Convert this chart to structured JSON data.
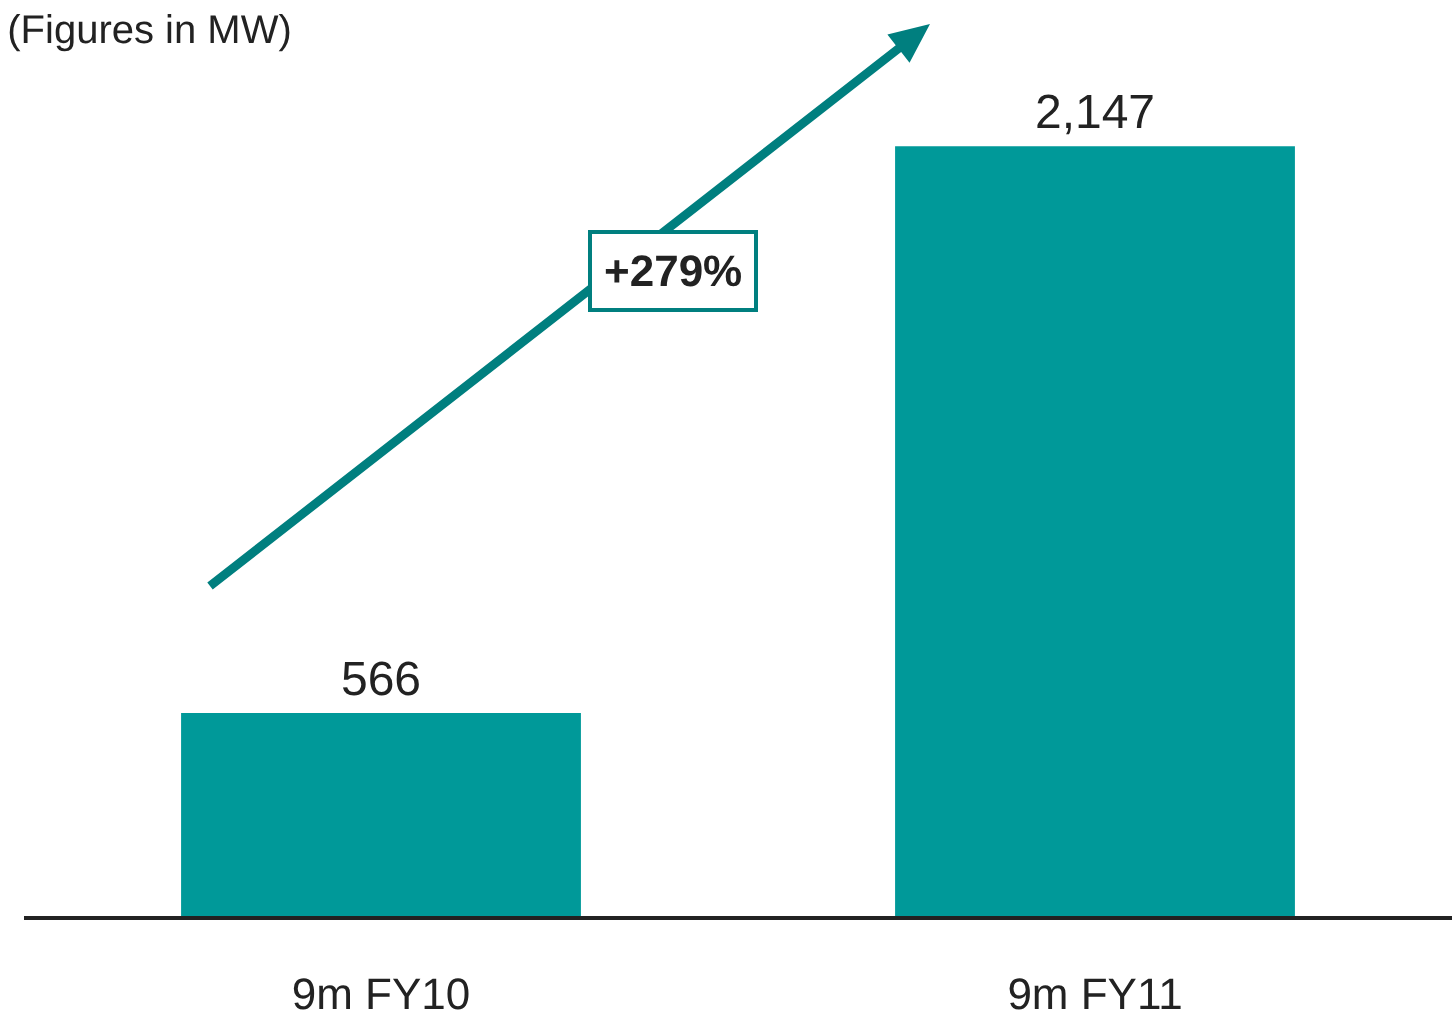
{
  "chart_data": {
    "type": "bar",
    "title": "(Figures in MW)",
    "categories": [
      "9m FY10",
      "9m FY11"
    ],
    "values": [
      566,
      2147
    ],
    "color": "#009999",
    "value_labels": [
      "566",
      "2,147"
    ],
    "annotations": [
      "+279%"
    ]
  }
}
